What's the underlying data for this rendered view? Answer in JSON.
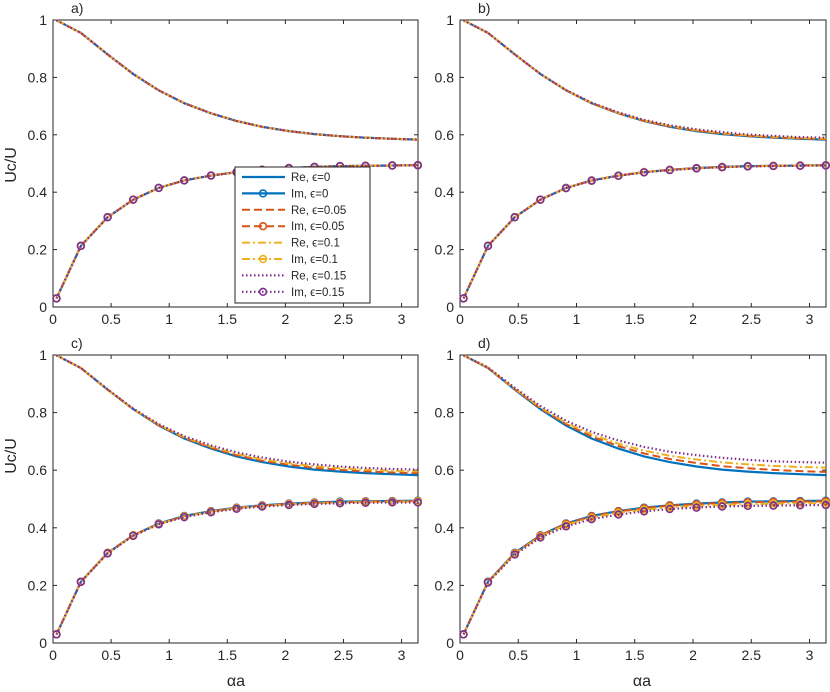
{
  "figure": {
    "ylabel": "Uc/U",
    "xlabel": "αa"
  },
  "legend": {
    "entries": [
      {
        "label": "Re, ϵ=0",
        "color": "#0072BD",
        "dash": "solid",
        "marker": false
      },
      {
        "label": "Im, ϵ=0",
        "color": "#0072BD",
        "dash": "solid",
        "marker": true
      },
      {
        "label": "Re, ϵ=0.05",
        "color": "#D95319",
        "dash": "dashed",
        "marker": false
      },
      {
        "label": "Im, ϵ=0.05",
        "color": "#D95319",
        "dash": "dashed",
        "marker": true
      },
      {
        "label": "Re, ϵ=0.1",
        "color": "#EDB120",
        "dash": "dashdot",
        "marker": false
      },
      {
        "label": "Im, ϵ=0.1",
        "color": "#EDB120",
        "dash": "dashdot",
        "marker": true
      },
      {
        "label": "Re, ϵ=0.15",
        "color": "#7E2F8E",
        "dash": "dotted",
        "marker": false
      },
      {
        "label": "Im, ϵ=0.15",
        "color": "#7E2F8E",
        "dash": "dotted",
        "marker": true
      }
    ]
  },
  "chart_data": [
    {
      "type": "line",
      "panel": "a)",
      "x": [
        0.03,
        0.24,
        0.47,
        0.69,
        0.91,
        1.13,
        1.36,
        1.58,
        1.8,
        2.03,
        2.25,
        2.47,
        2.69,
        2.92,
        3.14
      ],
      "xlim": [
        0,
        3.14159
      ],
      "ylim": [
        0,
        1
      ],
      "xticks": [
        "0",
        "0.5",
        "1",
        "1.5",
        "2",
        "2.5",
        "3"
      ],
      "yticks": [
        "0",
        "0.2",
        "0.4",
        "0.6",
        "0.8",
        "1"
      ],
      "series": [
        {
          "name": "Re, ϵ=0",
          "values": [
            0.999,
            0.955,
            0.88,
            0.812,
            0.755,
            0.71,
            0.675,
            0.648,
            0.628,
            0.613,
            0.602,
            0.595,
            0.59,
            0.586,
            0.583
          ]
        },
        {
          "name": "Im, ϵ=0",
          "values": [
            0.03,
            0.213,
            0.313,
            0.374,
            0.415,
            0.441,
            0.458,
            0.47,
            0.478,
            0.484,
            0.488,
            0.491,
            0.492,
            0.493,
            0.494
          ]
        },
        {
          "name": "Re, ϵ=0.05",
          "values": [
            0.999,
            0.955,
            0.88,
            0.812,
            0.755,
            0.71,
            0.675,
            0.648,
            0.628,
            0.613,
            0.602,
            0.595,
            0.59,
            0.586,
            0.583
          ]
        },
        {
          "name": "Im, ϵ=0.05",
          "values": [
            0.03,
            0.213,
            0.313,
            0.374,
            0.415,
            0.441,
            0.458,
            0.47,
            0.478,
            0.484,
            0.488,
            0.491,
            0.492,
            0.493,
            0.494
          ]
        },
        {
          "name": "Re, ϵ=0.1",
          "values": [
            0.999,
            0.955,
            0.88,
            0.812,
            0.755,
            0.71,
            0.675,
            0.648,
            0.628,
            0.613,
            0.602,
            0.595,
            0.59,
            0.586,
            0.584
          ]
        },
        {
          "name": "Im, ϵ=0.1",
          "values": [
            0.03,
            0.213,
            0.313,
            0.374,
            0.415,
            0.441,
            0.458,
            0.47,
            0.478,
            0.484,
            0.488,
            0.491,
            0.492,
            0.493,
            0.494
          ]
        },
        {
          "name": "Re, ϵ=0.15",
          "values": [
            0.999,
            0.955,
            0.88,
            0.812,
            0.755,
            0.71,
            0.675,
            0.648,
            0.628,
            0.613,
            0.603,
            0.595,
            0.59,
            0.586,
            0.584
          ]
        },
        {
          "name": "Im, ϵ=0.15",
          "values": [
            0.03,
            0.213,
            0.313,
            0.374,
            0.415,
            0.441,
            0.458,
            0.47,
            0.478,
            0.484,
            0.488,
            0.491,
            0.492,
            0.493,
            0.494
          ]
        }
      ]
    },
    {
      "type": "line",
      "panel": "b)",
      "x": [
        0.03,
        0.24,
        0.47,
        0.69,
        0.91,
        1.13,
        1.36,
        1.58,
        1.8,
        2.03,
        2.25,
        2.47,
        2.69,
        2.92,
        3.14
      ],
      "xlim": [
        0,
        3.14159
      ],
      "ylim": [
        0,
        1
      ],
      "xticks": [
        "0",
        "0.5",
        "1",
        "1.5",
        "2",
        "2.5",
        "3"
      ],
      "yticks": [
        "0",
        "0.2",
        "0.4",
        "0.6",
        "0.8",
        "1"
      ],
      "series": [
        {
          "name": "Re, ϵ=0",
          "values": [
            0.999,
            0.955,
            0.88,
            0.812,
            0.755,
            0.71,
            0.675,
            0.648,
            0.628,
            0.613,
            0.602,
            0.595,
            0.59,
            0.586,
            0.583
          ]
        },
        {
          "name": "Im, ϵ=0",
          "values": [
            0.03,
            0.213,
            0.313,
            0.374,
            0.415,
            0.441,
            0.458,
            0.47,
            0.478,
            0.484,
            0.488,
            0.491,
            0.492,
            0.493,
            0.494
          ]
        },
        {
          "name": "Re, ϵ=0.05",
          "values": [
            0.999,
            0.955,
            0.88,
            0.812,
            0.755,
            0.71,
            0.675,
            0.648,
            0.629,
            0.614,
            0.604,
            0.596,
            0.591,
            0.587,
            0.585
          ]
        },
        {
          "name": "Im, ϵ=0.05",
          "values": [
            0.03,
            0.213,
            0.313,
            0.374,
            0.415,
            0.441,
            0.458,
            0.47,
            0.478,
            0.484,
            0.488,
            0.49,
            0.492,
            0.493,
            0.494
          ]
        },
        {
          "name": "Re, ϵ=0.1",
          "values": [
            0.999,
            0.955,
            0.88,
            0.812,
            0.755,
            0.711,
            0.676,
            0.65,
            0.631,
            0.616,
            0.606,
            0.598,
            0.593,
            0.589,
            0.587
          ]
        },
        {
          "name": "Im, ϵ=0.1",
          "values": [
            0.03,
            0.213,
            0.313,
            0.374,
            0.415,
            0.44,
            0.458,
            0.47,
            0.478,
            0.483,
            0.487,
            0.49,
            0.492,
            0.493,
            0.494
          ]
        },
        {
          "name": "Re, ϵ=0.15",
          "values": [
            0.999,
            0.955,
            0.88,
            0.812,
            0.756,
            0.712,
            0.678,
            0.652,
            0.633,
            0.619,
            0.609,
            0.601,
            0.596,
            0.592,
            0.59
          ]
        },
        {
          "name": "Im, ϵ=0.15",
          "values": [
            0.03,
            0.213,
            0.313,
            0.374,
            0.414,
            0.44,
            0.457,
            0.469,
            0.477,
            0.483,
            0.487,
            0.49,
            0.491,
            0.492,
            0.493
          ]
        }
      ]
    },
    {
      "type": "line",
      "panel": "c)",
      "x": [
        0.03,
        0.24,
        0.47,
        0.69,
        0.91,
        1.13,
        1.36,
        1.58,
        1.8,
        2.03,
        2.25,
        2.47,
        2.69,
        2.92,
        3.14
      ],
      "xlim": [
        0,
        3.14159
      ],
      "ylim": [
        0,
        1
      ],
      "xticks": [
        "0",
        "0.5",
        "1",
        "1.5",
        "2",
        "2.5",
        "3"
      ],
      "yticks": [
        "0",
        "0.2",
        "0.4",
        "0.6",
        "0.8",
        "1"
      ],
      "series": [
        {
          "name": "Re, ϵ=0",
          "values": [
            0.999,
            0.955,
            0.88,
            0.812,
            0.755,
            0.71,
            0.675,
            0.648,
            0.628,
            0.613,
            0.602,
            0.595,
            0.59,
            0.586,
            0.583
          ]
        },
        {
          "name": "Im, ϵ=0",
          "values": [
            0.03,
            0.213,
            0.313,
            0.374,
            0.415,
            0.441,
            0.458,
            0.47,
            0.478,
            0.484,
            0.488,
            0.491,
            0.492,
            0.493,
            0.494
          ]
        },
        {
          "name": "Re, ϵ=0.05",
          "values": [
            0.999,
            0.955,
            0.88,
            0.812,
            0.756,
            0.712,
            0.678,
            0.652,
            0.633,
            0.619,
            0.608,
            0.601,
            0.596,
            0.592,
            0.59
          ]
        },
        {
          "name": "Im, ϵ=0.05",
          "values": [
            0.03,
            0.213,
            0.313,
            0.374,
            0.414,
            0.44,
            0.457,
            0.469,
            0.477,
            0.483,
            0.487,
            0.489,
            0.491,
            0.492,
            0.493
          ]
        },
        {
          "name": "Re, ϵ=0.1",
          "values": [
            0.999,
            0.955,
            0.88,
            0.813,
            0.758,
            0.715,
            0.682,
            0.657,
            0.638,
            0.624,
            0.614,
            0.607,
            0.602,
            0.598,
            0.596
          ]
        },
        {
          "name": "Im, ϵ=0.1",
          "values": [
            0.03,
            0.212,
            0.312,
            0.373,
            0.413,
            0.439,
            0.456,
            0.468,
            0.476,
            0.481,
            0.485,
            0.488,
            0.489,
            0.49,
            0.491
          ]
        },
        {
          "name": "Re, ϵ=0.15",
          "values": [
            0.999,
            0.955,
            0.881,
            0.814,
            0.76,
            0.718,
            0.686,
            0.662,
            0.644,
            0.63,
            0.62,
            0.613,
            0.608,
            0.604,
            0.602
          ]
        },
        {
          "name": "Im, ϵ=0.15",
          "values": [
            0.03,
            0.212,
            0.311,
            0.372,
            0.412,
            0.437,
            0.454,
            0.466,
            0.474,
            0.479,
            0.483,
            0.485,
            0.487,
            0.488,
            0.488
          ]
        }
      ]
    },
    {
      "type": "line",
      "panel": "d)",
      "x": [
        0.03,
        0.24,
        0.47,
        0.69,
        0.91,
        1.13,
        1.36,
        1.58,
        1.8,
        2.03,
        2.25,
        2.47,
        2.69,
        2.92,
        3.14
      ],
      "xlim": [
        0,
        3.14159
      ],
      "ylim": [
        0,
        1
      ],
      "xticks": [
        "0",
        "0.5",
        "1",
        "1.5",
        "2",
        "2.5",
        "3"
      ],
      "yticks": [
        "0",
        "0.2",
        "0.4",
        "0.6",
        "0.8",
        "1"
      ],
      "series": [
        {
          "name": "Re, ϵ=0",
          "values": [
            0.999,
            0.955,
            0.88,
            0.812,
            0.755,
            0.71,
            0.675,
            0.648,
            0.628,
            0.613,
            0.602,
            0.595,
            0.59,
            0.586,
            0.583
          ]
        },
        {
          "name": "Im, ϵ=0",
          "values": [
            0.03,
            0.213,
            0.313,
            0.374,
            0.415,
            0.441,
            0.458,
            0.47,
            0.478,
            0.484,
            0.488,
            0.491,
            0.492,
            0.493,
            0.494
          ]
        },
        {
          "name": "Re, ϵ=0.05",
          "values": [
            0.999,
            0.955,
            0.881,
            0.815,
            0.76,
            0.717,
            0.684,
            0.658,
            0.639,
            0.625,
            0.614,
            0.607,
            0.601,
            0.597,
            0.594
          ]
        },
        {
          "name": "Im, ϵ=0.05",
          "values": [
            0.03,
            0.212,
            0.312,
            0.373,
            0.414,
            0.44,
            0.457,
            0.468,
            0.477,
            0.482,
            0.486,
            0.489,
            0.49,
            0.491,
            0.492
          ]
        },
        {
          "name": "Re, ϵ=0.1",
          "values": [
            0.999,
            0.956,
            0.883,
            0.818,
            0.765,
            0.724,
            0.692,
            0.668,
            0.65,
            0.637,
            0.627,
            0.62,
            0.615,
            0.611,
            0.609
          ]
        },
        {
          "name": "Im, ϵ=0.1",
          "values": [
            0.03,
            0.211,
            0.31,
            0.37,
            0.41,
            0.435,
            0.452,
            0.463,
            0.471,
            0.476,
            0.48,
            0.482,
            0.484,
            0.485,
            0.486
          ]
        },
        {
          "name": "Re, ϵ=0.15",
          "values": [
            0.999,
            0.957,
            0.886,
            0.823,
            0.772,
            0.733,
            0.703,
            0.681,
            0.664,
            0.652,
            0.643,
            0.636,
            0.631,
            0.628,
            0.626
          ]
        },
        {
          "name": "Im, ϵ=0.15",
          "values": [
            0.03,
            0.21,
            0.307,
            0.366,
            0.405,
            0.43,
            0.446,
            0.457,
            0.465,
            0.47,
            0.474,
            0.476,
            0.477,
            0.478,
            0.479
          ]
        }
      ]
    }
  ]
}
